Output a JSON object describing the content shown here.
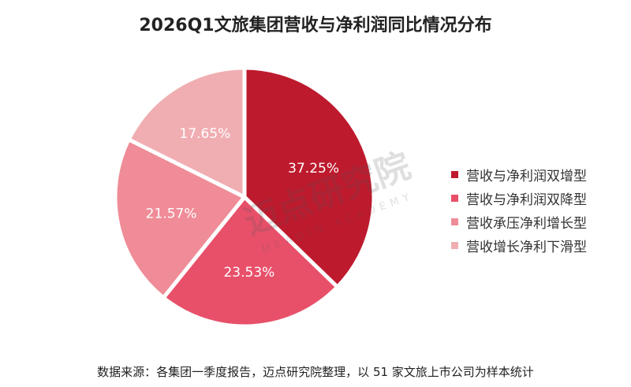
{
  "chart_data": {
    "type": "pie",
    "title": "2026Q1文旅集团营收与净利润同比情况分布",
    "categories": [
      "营收与净利润双增型",
      "营收与净利润双降型",
      "营收承压净利增长型",
      "营收增长净利下滑型"
    ],
    "values": [
      37.25,
      23.53,
      21.57,
      17.65
    ],
    "value_labels": [
      "37.25%",
      "23.53%",
      "21.57%",
      "17.65%"
    ],
    "colors": [
      "#be1a2e",
      "#e8506a",
      "#ef8c97",
      "#f0aeb2"
    ],
    "legend_position": "right"
  },
  "watermark": {
    "text": "迈点研究院",
    "subtext": "MEADIN ACADEMY"
  },
  "source_note": "数据来源：各集团一季度报告，迈点研究院整理，以 51 家文旅上市公司为样本统计"
}
